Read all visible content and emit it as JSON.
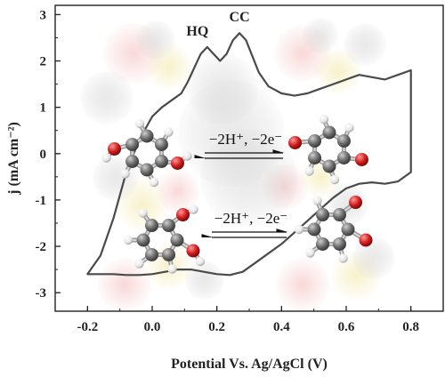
{
  "chart_data": {
    "type": "line",
    "title": "",
    "xlabel": "Potential Vs. Ag/AgCl (V)",
    "ylabel": "j (mA cm⁻²)",
    "xlim": [
      -0.3,
      0.9
    ],
    "ylim": [
      -3.4,
      3.2
    ],
    "x_ticks": [
      -0.2,
      0.0,
      0.2,
      0.4,
      0.6,
      0.8
    ],
    "x_tick_labels": [
      "-0.2",
      "0.0",
      "0.2",
      "0.4",
      "0.6",
      "0.8"
    ],
    "y_ticks": [
      -3,
      -2,
      -1,
      0,
      1,
      2,
      3
    ],
    "y_tick_labels": [
      "-3",
      "-2",
      "-1",
      "0",
      "1",
      "2",
      "3"
    ],
    "grid": false,
    "series": [
      {
        "color": "#4a4a4a",
        "x": [
          -0.2,
          -0.16,
          -0.12,
          -0.08,
          -0.04,
          0.0,
          0.03,
          0.06,
          0.09,
          0.11,
          0.13,
          0.15,
          0.17,
          0.19,
          0.21,
          0.23,
          0.25,
          0.27,
          0.29,
          0.31,
          0.33,
          0.36,
          0.4,
          0.44,
          0.48,
          0.52,
          0.56,
          0.6,
          0.64,
          0.68,
          0.72,
          0.76,
          0.8,
          0.8,
          0.76,
          0.72,
          0.68,
          0.64,
          0.6,
          0.56,
          0.52,
          0.48,
          0.44,
          0.4,
          0.36,
          0.32,
          0.28,
          0.24,
          0.2,
          0.16,
          0.12,
          0.08,
          0.04,
          0.0,
          -0.04,
          -0.08,
          -0.12,
          -0.16,
          -0.2
        ],
        "y": [
          -2.6,
          -2.2,
          -1.4,
          -0.4,
          0.3,
          0.8,
          1.0,
          1.15,
          1.3,
          1.55,
          1.85,
          2.15,
          2.3,
          2.15,
          2.0,
          2.15,
          2.45,
          2.6,
          2.45,
          2.1,
          1.75,
          1.45,
          1.3,
          1.25,
          1.3,
          1.4,
          1.5,
          1.6,
          1.7,
          1.65,
          1.6,
          1.7,
          1.8,
          -0.4,
          -0.6,
          -0.65,
          -0.62,
          -0.65,
          -0.75,
          -0.95,
          -1.2,
          -1.45,
          -1.7,
          -1.95,
          -2.15,
          -2.35,
          -2.55,
          -2.62,
          -2.6,
          -2.55,
          -2.5,
          -2.5,
          -2.55,
          -2.6,
          -2.62,
          -2.62,
          -2.6,
          -2.6,
          -2.6
        ]
      }
    ],
    "annotations": [
      {
        "text": "HQ",
        "x": 0.14,
        "y": 2.55
      },
      {
        "text": "CC",
        "x": 0.27,
        "y": 2.85
      }
    ]
  },
  "reactions": [
    {
      "label": "−2H⁺, −2e⁻"
    },
    {
      "label": "−2H⁺, −2e⁻"
    }
  ],
  "colors": {
    "curve": "#4a4a4a",
    "carbon": "#6b6b6b",
    "oxygen": "#d01c1c",
    "hydrogen": "#f2f2f2",
    "axis": "#222222"
  }
}
